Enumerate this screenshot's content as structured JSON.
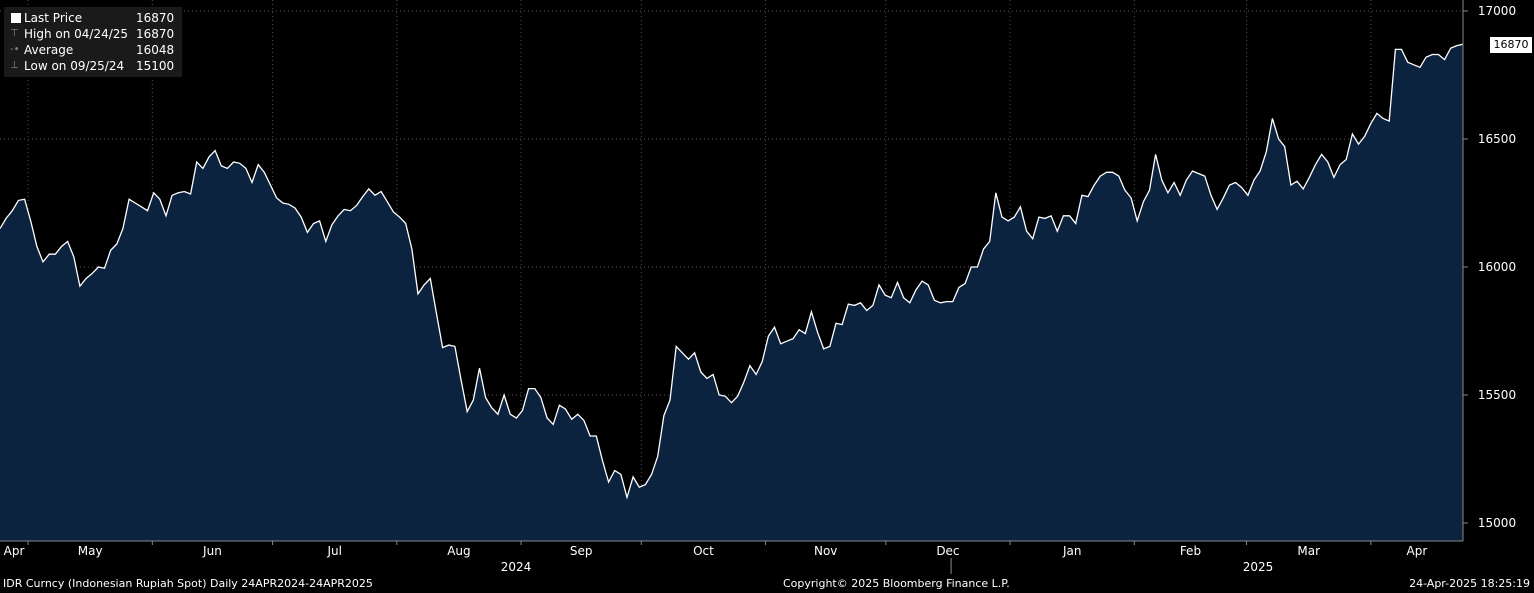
{
  "legend": {
    "last_price_label": "Last Price",
    "last_price_value": "16870",
    "high_label": "High on 04/24/25",
    "high_value": "16870",
    "average_label": "Average",
    "average_value": "16048",
    "low_label": "Low on 09/25/24",
    "low_value": "15100"
  },
  "last_tag": "16870",
  "footer": {
    "left": "IDR Curncy (Indonesian Rupiah Spot)  Daily 24APR2024-24APR2025",
    "mid": "Copyright© 2025 Bloomberg Finance L.P.",
    "right": "24-Apr-2025 18:25:19"
  },
  "colors": {
    "background": "#000000",
    "area_fill": "#0c2340",
    "line": "#ffffff",
    "grid": "#666666"
  },
  "chart_data": {
    "type": "area",
    "title": "",
    "xlabel": "",
    "ylabel": "",
    "ylim": [
      14950,
      17050
    ],
    "yticks": [
      15000,
      15500,
      16000,
      16500,
      17000
    ],
    "month_labels": [
      "Apr",
      "May",
      "Jun",
      "Jul",
      "Aug",
      "Sep",
      "Oct",
      "Nov",
      "Dec",
      "Jan",
      "Feb",
      "Mar",
      "Apr"
    ],
    "year_labels": [
      "2024",
      "2025"
    ],
    "grid": true,
    "series": [
      {
        "name": "Last Price",
        "x_start": "2024-04-24",
        "x_end": "2025-04-24",
        "values": [
          16150,
          16190,
          16220,
          16260,
          16265,
          16180,
          16080,
          16020,
          16050,
          16050,
          16080,
          16100,
          16040,
          15925,
          15955,
          15975,
          16000,
          15995,
          16065,
          16090,
          16150,
          16265,
          16250,
          16235,
          16220,
          16290,
          16265,
          16200,
          16280,
          16290,
          16295,
          16285,
          16410,
          16385,
          16430,
          16455,
          16395,
          16385,
          16410,
          16405,
          16385,
          16330,
          16400,
          16370,
          16320,
          16270,
          16250,
          16245,
          16230,
          16195,
          16135,
          16170,
          16180,
          16100,
          16165,
          16200,
          16225,
          16220,
          16240,
          16275,
          16305,
          16280,
          16295,
          16255,
          16215,
          16195,
          16170,
          16070,
          15895,
          15930,
          15955,
          15820,
          15685,
          15695,
          15690,
          15560,
          15435,
          15480,
          15605,
          15490,
          15450,
          15425,
          15500,
          15425,
          15410,
          15440,
          15525,
          15525,
          15490,
          15410,
          15385,
          15460,
          15445,
          15405,
          15425,
          15400,
          15340,
          15340,
          15245,
          15160,
          15205,
          15190,
          15100,
          15180,
          15140,
          15150,
          15190,
          15260,
          15420,
          15480,
          15690,
          15665,
          15640,
          15665,
          15590,
          15565,
          15580,
          15500,
          15495,
          15470,
          15495,
          15550,
          15615,
          15580,
          15630,
          15730,
          15765,
          15700,
          15710,
          15720,
          15755,
          15740,
          15825,
          15745,
          15680,
          15690,
          15780,
          15775,
          15855,
          15850,
          15860,
          15830,
          15850,
          15930,
          15890,
          15880,
          15940,
          15880,
          15860,
          15910,
          15945,
          15930,
          15870,
          15860,
          15865,
          15865,
          15920,
          15935,
          16000,
          16000,
          16070,
          16100,
          16290,
          16195,
          16180,
          16195,
          16235,
          16140,
          16110,
          16195,
          16190,
          16200,
          16140,
          16200,
          16200,
          16170,
          16280,
          16275,
          16320,
          16355,
          16370,
          16370,
          16355,
          16300,
          16270,
          16180,
          16255,
          16300,
          16440,
          16340,
          16290,
          16330,
          16280,
          16340,
          16375,
          16365,
          16355,
          16280,
          16225,
          16270,
          16320,
          16330,
          16310,
          16280,
          16340,
          16375,
          16450,
          16580,
          16500,
          16470,
          16320,
          16335,
          16305,
          16350,
          16400,
          16440,
          16410,
          16350,
          16400,
          16420,
          16520,
          16480,
          16510,
          16560,
          16600,
          16580,
          16570,
          16850,
          16850,
          16800,
          16790,
          16780,
          16820,
          16830,
          16830,
          16810,
          16855,
          16865,
          16870
        ]
      }
    ]
  }
}
